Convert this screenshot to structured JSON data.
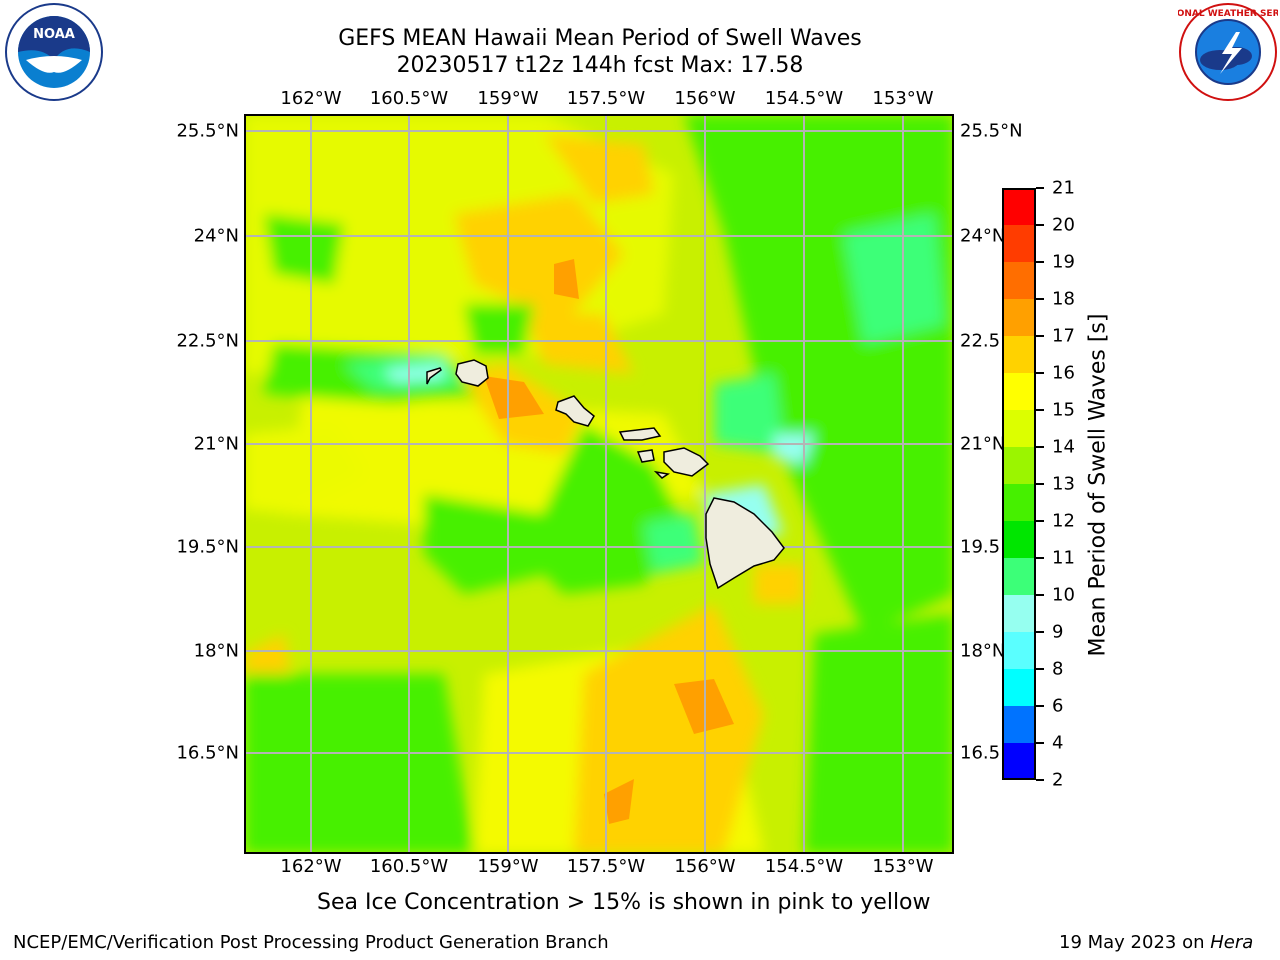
{
  "title": {
    "line1": "GEFS MEAN Hawaii Mean Period of Swell Waves",
    "line2": "20230517 t12z 144h fcst   Max: 17.58"
  },
  "logos": {
    "left": {
      "name": "NOAA",
      "ring_text": "NATIONAL OCEANIC AND ATMOSPHERIC ADMINISTRATION · U.S. DEPARTMENT OF COMMERCE"
    },
    "right": {
      "name": "NATIONAL WEATHER SERVICE"
    }
  },
  "map": {
    "lon_labels": [
      "162°W",
      "160.5°W",
      "159°W",
      "157.5°W",
      "156°W",
      "154.5°W",
      "153°W"
    ],
    "lat_labels": [
      "25.5°N",
      "24°N",
      "22.5°N",
      "21°N",
      "19.5°N",
      "18°N",
      "16.5°N"
    ],
    "lat_labels_right": [
      "25.5°N",
      "24°N",
      "22.5",
      "21°N",
      "19.5",
      "18°N",
      "16.5"
    ],
    "background_color": "#c8f000",
    "land_color": "#efedde",
    "grid_color": "#b4b4b4"
  },
  "colorbar": {
    "title": "Mean Period of Swell Waves [s]",
    "levels": [
      "2",
      "4",
      "6",
      "8",
      "9",
      "10",
      "11",
      "12",
      "13",
      "14",
      "15",
      "16",
      "17",
      "18",
      "19",
      "20",
      "21"
    ],
    "colors": [
      "#0000ff",
      "#0073ff",
      "#00ffff",
      "#5affff",
      "#96fff0",
      "#3cff78",
      "#00e600",
      "#46f000",
      "#9bf500",
      "#dcff00",
      "#ffff00",
      "#ffd200",
      "#ffa000",
      "#ff6e00",
      "#ff3c00",
      "#ff0000"
    ]
  },
  "caption": "Sea Ice Concentration > 15% is shown in pink to yellow",
  "footer": {
    "left": "NCEP/EMC/Verification Post Processing Product Generation Branch",
    "right_prefix": "19 May 2023 on ",
    "right_host": "Hera"
  }
}
